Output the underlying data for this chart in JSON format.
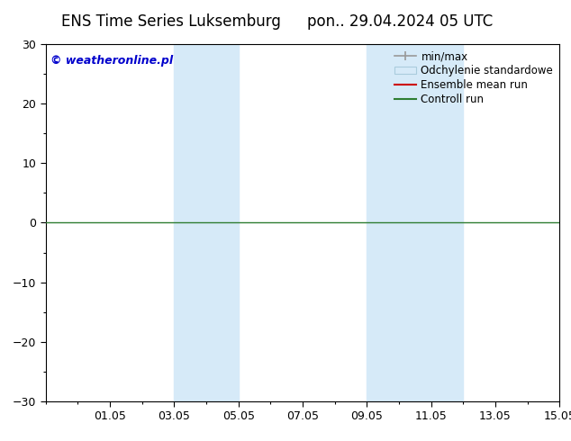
{
  "title_left": "ENS Time Series Luksemburg",
  "title_right": "pon.. 29.04.2024 05 UTC",
  "ylim": [
    -30,
    30
  ],
  "yticks": [
    -30,
    -20,
    -10,
    0,
    10,
    20,
    30
  ],
  "xlim": [
    0,
    16
  ],
  "xtick_positions": [
    2,
    4,
    6,
    8,
    10,
    12,
    14,
    16
  ],
  "xtick_labels": [
    "01.05",
    "03.05",
    "05.05",
    "07.05",
    "09.05",
    "11.05",
    "13.05",
    "15.05"
  ],
  "shaded_regions": [
    {
      "xmin": 4.0,
      "xmax": 6.0,
      "color": "#d6eaf8"
    },
    {
      "xmin": 10.0,
      "xmax": 13.0,
      "color": "#d6eaf8"
    }
  ],
  "control_run_y": 0,
  "control_run_color": "#2e7d32",
  "ensemble_mean_color": "#cc0000",
  "minmax_color": "#999999",
  "std_color": "#d6eaf8",
  "background_color": "#ffffff",
  "plot_bg_color": "#ffffff",
  "watermark_text": "© weatheronline.pl",
  "watermark_color": "#0000cc",
  "legend_items": [
    {
      "label": "min/max",
      "type": "line",
      "color": "#999999"
    },
    {
      "label": "Odchylenie standardowe",
      "type": "patch",
      "color": "#d6eaf8"
    },
    {
      "label": "Ensemble mean run",
      "type": "line",
      "color": "#cc0000"
    },
    {
      "label": "Controll run",
      "type": "line",
      "color": "#2e7d32"
    }
  ],
  "title_fontsize": 12,
  "tick_fontsize": 9,
  "legend_fontsize": 8.5,
  "watermark_fontsize": 9
}
